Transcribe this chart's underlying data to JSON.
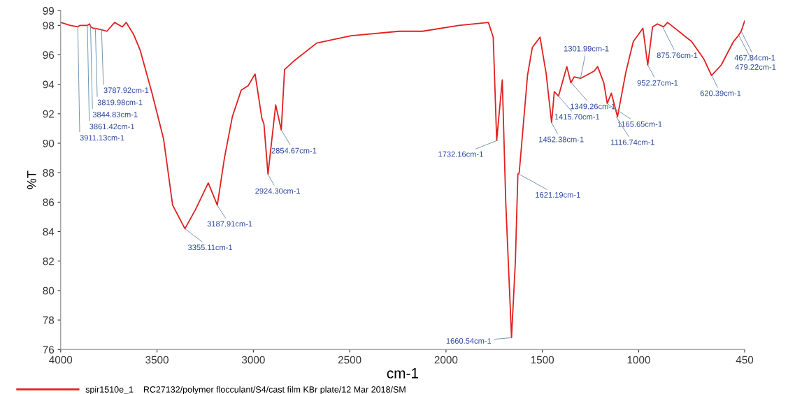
{
  "chart_data": {
    "type": "line",
    "xlabel": "cm-1",
    "ylabel": "%T",
    "xlim": [
      4000,
      450
    ],
    "ylim": [
      76,
      99
    ],
    "xticks": [
      4000,
      3500,
      3000,
      2500,
      2000,
      1500,
      1000,
      450
    ],
    "yticks": [
      76,
      78,
      80,
      82,
      84,
      86,
      88,
      90,
      92,
      94,
      96,
      98,
      99
    ],
    "grid": false,
    "legend": "bottom",
    "marker": "none",
    "line_style": "solid",
    "series": [
      {
        "name": "spir1510e_1    RC27132/polymer flocculant/S4/cast film KBr plate/12 Mar 2018/SM",
        "color": "#e02020",
        "x": [
          4000,
          3950,
          3911,
          3900,
          3861,
          3850,
          3844,
          3830,
          3820,
          3788,
          3760,
          3720,
          3680,
          3660,
          3622,
          3587,
          3526,
          3466,
          3419,
          3355,
          3300,
          3234,
          3187,
          3150,
          3109,
          3063,
          3027,
          2991,
          2956,
          2945,
          2924,
          2884,
          2855,
          2838,
          2788,
          2671,
          2492,
          2243,
          2122,
          1933,
          1780,
          1755,
          1737,
          1708,
          1690,
          1660,
          1640,
          1627,
          1620,
          1577,
          1552,
          1512,
          1480,
          1470,
          1452,
          1438,
          1416,
          1373,
          1352,
          1335,
          1302,
          1231,
          1213,
          1181,
          1163,
          1142,
          1110,
          1067,
          1028,
          978,
          953,
          928,
          903,
          871,
          850,
          725,
          661,
          622,
          572,
          508,
          483,
          468,
          450
        ],
        "values": [
          98.2,
          98.0,
          97.9,
          98.0,
          98.0,
          98.1,
          97.9,
          97.8,
          97.8,
          97.7,
          97.6,
          98.2,
          97.9,
          98.2,
          97.4,
          96.3,
          93.4,
          90.3,
          85.8,
          84.2,
          85.5,
          87.3,
          85.8,
          89.0,
          91.8,
          93.6,
          93.9,
          94.7,
          91.7,
          91.3,
          87.9,
          92.6,
          90.9,
          95.0,
          95.6,
          96.8,
          97.3,
          97.6,
          97.6,
          98.0,
          98.2,
          97.2,
          90.2,
          94.3,
          86.0,
          76.8,
          82.0,
          87.9,
          88.0,
          94.6,
          96.5,
          97.2,
          94.7,
          93.5,
          91.4,
          93.5,
          93.2,
          95.2,
          94.1,
          94.5,
          94.4,
          94.9,
          95.2,
          94.1,
          92.7,
          93.4,
          91.8,
          94.8,
          96.9,
          97.8,
          95.3,
          97.9,
          98.1,
          97.9,
          98.2,
          96.9,
          95.7,
          94.6,
          95.3,
          96.9,
          97.3,
          97.6,
          98.3
        ]
      }
    ],
    "annotations": [
      {
        "text": "3787.92cm-1",
        "x": 3787.92,
        "y": 97.7
      },
      {
        "text": "3844.83cm-1",
        "x": 3844.83,
        "y": 97.9
      },
      {
        "text": "3911.13cm-1",
        "x": 3911.13,
        "y": 97.9
      },
      {
        "text": "3819.98cm-1",
        "x": 3819.98,
        "y": 97.8
      },
      {
        "text": "3861.42cm-1",
        "x": 3861.42,
        "y": 98.0
      },
      {
        "text": "3355.11cm-1",
        "x": 3355.11,
        "y": 84.2
      },
      {
        "text": "3187.91cm-1",
        "x": 3187.91,
        "y": 85.8
      },
      {
        "text": "2924.30cm-1",
        "x": 2924.3,
        "y": 87.9
      },
      {
        "text": "2854.67cm-1",
        "x": 2854.67,
        "y": 90.9
      },
      {
        "text": "1732.16cm-1",
        "x": 1732.16,
        "y": 90.2
      },
      {
        "text": "1660.54cm-1",
        "x": 1660.54,
        "y": 76.8
      },
      {
        "text": "1621.19cm-1",
        "x": 1621.19,
        "y": 87.9
      },
      {
        "text": "1452.38cm-1",
        "x": 1452.38,
        "y": 91.4
      },
      {
        "text": "1415.70cm-1",
        "x": 1415.7,
        "y": 93.2
      },
      {
        "text": "1349.26cm-1",
        "x": 1349.26,
        "y": 94.1
      },
      {
        "text": "1301.99cm-1",
        "x": 1301.99,
        "y": 94.4
      },
      {
        "text": "1165.65cm-1",
        "x": 1165.65,
        "y": 92.7
      },
      {
        "text": "1116.74cm-1",
        "x": 1116.74,
        "y": 91.8
      },
      {
        "text": "952.27cm-1",
        "x": 952.27,
        "y": 95.3
      },
      {
        "text": "875.76cm-1",
        "x": 875.76,
        "y": 97.9
      },
      {
        "text": "620.39cm-1",
        "x": 620.39,
        "y": 94.6
      },
      {
        "text": "467.84cm-1",
        "x": 467.84,
        "y": 97.6
      },
      {
        "text": "479.22cm-1",
        "x": 479.22,
        "y": 97.3
      }
    ]
  }
}
